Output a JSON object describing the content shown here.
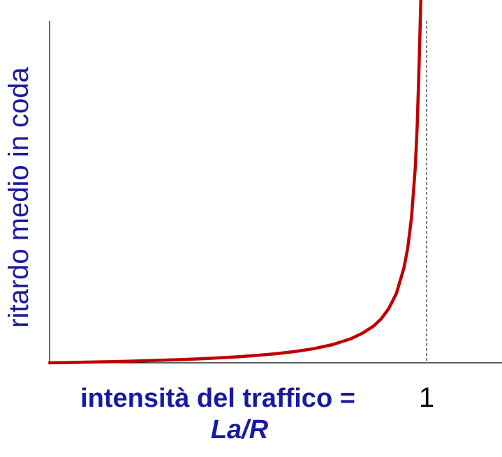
{
  "chart_data": {
    "type": "line",
    "title": "",
    "ylabel": "ritardo medio in coda",
    "xlabel_line1": "intensità del traffico =",
    "xlabel_line2": "La/R",
    "x_ticks": [
      {
        "value": 1,
        "label": "1"
      }
    ],
    "xlim": [
      0,
      1.2
    ],
    "ylim": [
      0,
      60
    ],
    "vertical_marker": {
      "x": 1,
      "style": "dashed"
    },
    "grid": false,
    "legend": "none",
    "series": [
      {
        "color": "#c00000",
        "x": [
          0,
          0.05,
          0.1,
          0.15,
          0.2,
          0.25,
          0.3,
          0.35,
          0.4,
          0.45,
          0.5,
          0.55,
          0.6,
          0.65,
          0.7,
          0.75,
          0.8,
          0.83,
          0.86,
          0.88,
          0.9,
          0.92,
          0.94,
          0.95,
          0.96,
          0.97,
          0.975,
          0.98,
          0.985
        ],
        "y": [
          0,
          0.05,
          0.11,
          0.18,
          0.25,
          0.33,
          0.43,
          0.54,
          0.67,
          0.82,
          1.0,
          1.22,
          1.5,
          1.86,
          2.33,
          3.0,
          4.0,
          4.9,
          6.1,
          7.3,
          9.0,
          11.5,
          15.7,
          19.0,
          24.0,
          32.3,
          39.0,
          49.0,
          65.7
        ]
      }
    ]
  }
}
